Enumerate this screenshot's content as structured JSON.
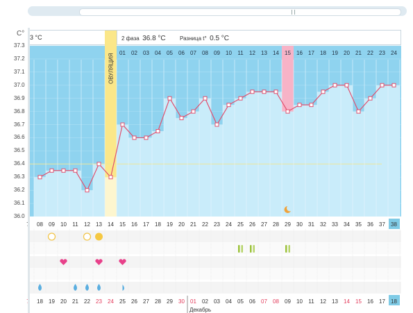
{
  "app": {
    "unit_label": "C°",
    "scroll": {
      "grip": "||"
    }
  },
  "header": {
    "phase1_temp": "3 °C",
    "phase2_label": "2 фаза",
    "phase2_temp": "36.8 °C",
    "diff_label": "Разница t°",
    "diff_value": "0.5 °C",
    "ovulation_label": "ОВУЛЯЦИЯ",
    "ovulation_icon": "sun-icon"
  },
  "chart_data": {
    "type": "line",
    "title": "",
    "y_ticks": [
      "37.3",
      "37.2",
      "37.1",
      "37.0",
      "36.9",
      "36.8",
      "36.7",
      "36.6",
      "36.5",
      "36.4",
      "36.3",
      "36.2",
      "36.1",
      "36.0"
    ],
    "ylim": [
      36.0,
      37.3
    ],
    "cover_line": 36.4,
    "ovulation_day": 14,
    "highlight_day": 29,
    "phase_day_labels": [
      "01",
      "02",
      "03",
      "04",
      "05",
      "06",
      "07",
      "08",
      "09",
      "10",
      "11",
      "12",
      "13",
      "14",
      "15",
      "16",
      "17",
      "18",
      "19",
      "20",
      "21",
      "22",
      "23",
      "24"
    ],
    "cycle_days": [
      "7",
      "08",
      "09",
      "10",
      "11",
      "12",
      "13",
      "14",
      "15",
      "16",
      "17",
      "18",
      "19",
      "20",
      "21",
      "22",
      "23",
      "24",
      "25",
      "26",
      "27",
      "28",
      "29",
      "30",
      "31",
      "32",
      "33",
      "34",
      "35",
      "36",
      "37",
      "38"
    ],
    "dates": [
      "7",
      "18",
      "19",
      "20",
      "21",
      "22",
      "23",
      "24",
      "25",
      "26",
      "27",
      "28",
      "29",
      "30",
      "01",
      "02",
      "03",
      "04",
      "05",
      "06",
      "07",
      "08",
      "09",
      "10",
      "11",
      "12",
      "13",
      "14",
      "15",
      "16",
      "17",
      "18"
    ],
    "date_colors": [
      "red",
      "dark",
      "dark",
      "dark",
      "dark",
      "dark",
      "red",
      "red",
      "dark",
      "dark",
      "dark",
      "dark",
      "dark",
      "red",
      "red",
      "dark",
      "dark",
      "dark",
      "dark",
      "dark",
      "red",
      "red",
      "dark",
      "dark",
      "dark",
      "dark",
      "dark",
      "red",
      "red",
      "dark",
      "dark",
      "dark"
    ],
    "month_label": "Декабрь",
    "series": [
      {
        "values": [
          null,
          36.3,
          36.35,
          36.35,
          36.35,
          36.2,
          36.4,
          36.3,
          36.7,
          36.6,
          36.6,
          36.65,
          36.9,
          36.75,
          36.8,
          36.9,
          36.7,
          36.85,
          36.9,
          36.95,
          36.95,
          36.95,
          36.8,
          36.85,
          36.85,
          36.95,
          37.0,
          37.0,
          36.8,
          36.9,
          37.0,
          37.0
        ]
      }
    ],
    "events": {
      "circle_open": [
        "09",
        "12"
      ],
      "circle_filled": [
        "13"
      ],
      "hearts": [
        "10",
        "13",
        "15"
      ],
      "drops": [
        "08",
        "11",
        "12",
        "13"
      ],
      "half_drop": [
        "15"
      ],
      "green_bars": [
        "25",
        "26",
        "29"
      ],
      "moon": [
        "29"
      ]
    }
  },
  "colors": {
    "sky": "#8fd3ef",
    "bar": "#c9ecfa",
    "ovulation": "#fbe789",
    "pink": "#f7b3c7",
    "line": "#e0506f"
  }
}
